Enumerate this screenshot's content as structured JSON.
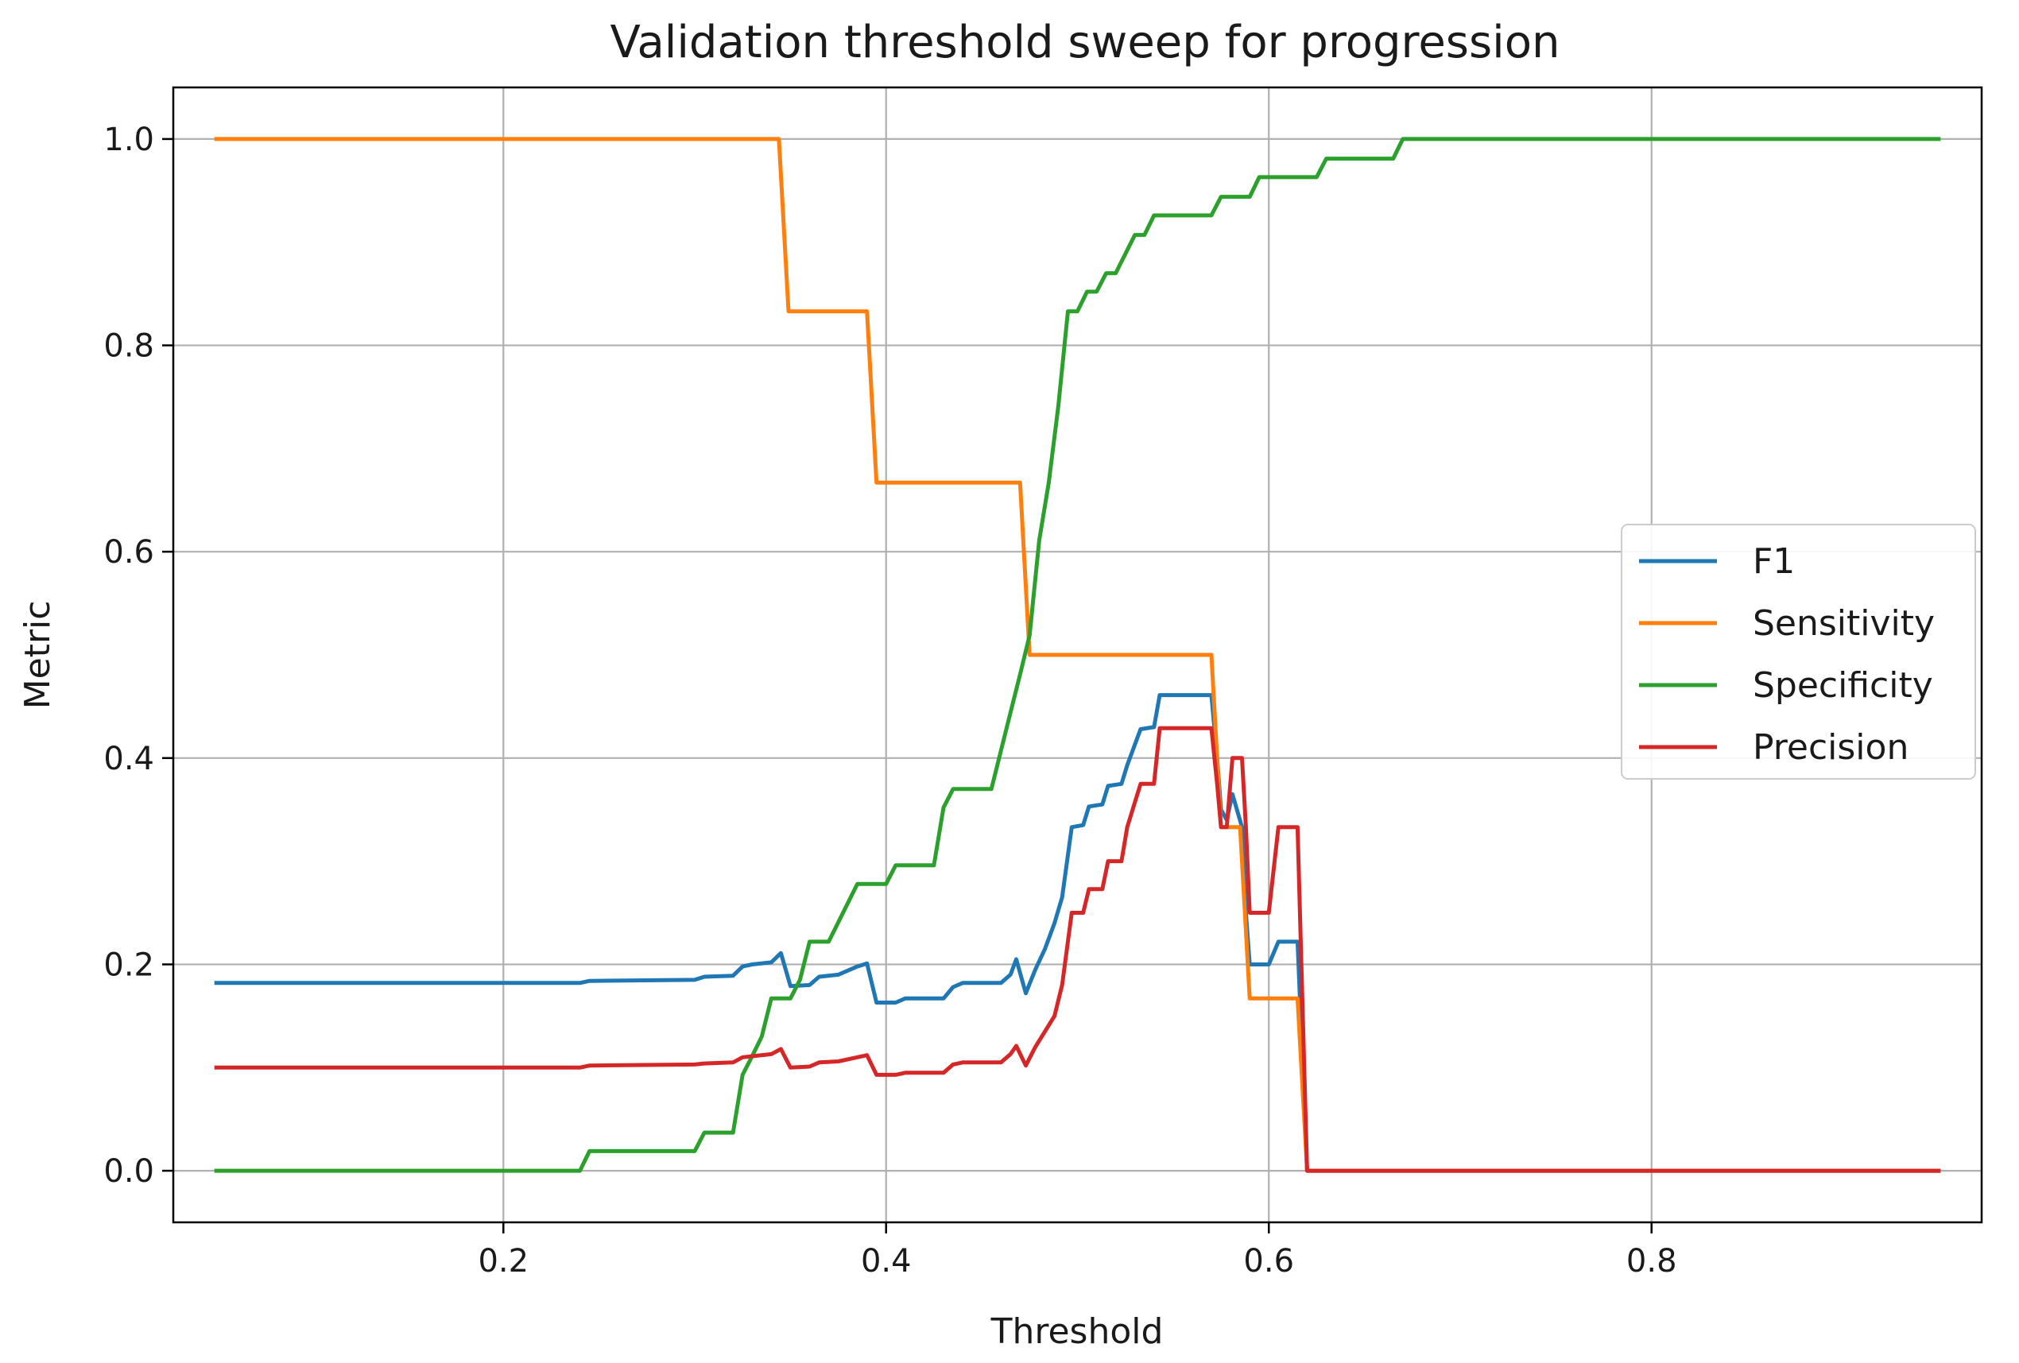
{
  "chart_data": {
    "type": "line",
    "title": "Validation threshold sweep for progression",
    "xlabel": "Threshold",
    "ylabel": "Metric",
    "xlim": [
      0.0275,
      0.9725
    ],
    "ylim": [
      -0.05,
      1.05
    ],
    "xticks": [
      0.2,
      0.4,
      0.6,
      0.8
    ],
    "xtick_labels": [
      "0.2",
      "0.4",
      "0.6",
      "0.8"
    ],
    "yticks": [
      0.0,
      0.2,
      0.4,
      0.6,
      0.8,
      1.0
    ],
    "ytick_labels": [
      "0.0",
      "0.2",
      "0.4",
      "0.6",
      "0.8",
      "1.0"
    ],
    "grid": true,
    "legend_position": "center-right",
    "series": [
      {
        "name": "F1",
        "color": "#1f77b4",
        "points": [
          [
            0.05,
            0.182
          ],
          [
            0.24,
            0.182
          ],
          [
            0.245,
            0.184
          ],
          [
            0.3,
            0.185
          ],
          [
            0.305,
            0.188
          ],
          [
            0.32,
            0.189
          ],
          [
            0.325,
            0.198
          ],
          [
            0.33,
            0.2
          ],
          [
            0.34,
            0.202
          ],
          [
            0.345,
            0.211
          ],
          [
            0.35,
            0.179
          ],
          [
            0.36,
            0.18
          ],
          [
            0.365,
            0.188
          ],
          [
            0.375,
            0.19
          ],
          [
            0.385,
            0.198
          ],
          [
            0.39,
            0.201
          ],
          [
            0.395,
            0.163
          ],
          [
            0.405,
            0.163
          ],
          [
            0.41,
            0.167
          ],
          [
            0.43,
            0.167
          ],
          [
            0.435,
            0.178
          ],
          [
            0.44,
            0.182
          ],
          [
            0.46,
            0.182
          ],
          [
            0.465,
            0.19
          ],
          [
            0.468,
            0.205
          ],
          [
            0.473,
            0.172
          ],
          [
            0.478,
            0.195
          ],
          [
            0.483,
            0.215
          ],
          [
            0.488,
            0.24
          ],
          [
            0.492,
            0.265
          ],
          [
            0.497,
            0.333
          ],
          [
            0.503,
            0.335
          ],
          [
            0.506,
            0.353
          ],
          [
            0.513,
            0.355
          ],
          [
            0.516,
            0.373
          ],
          [
            0.523,
            0.375
          ],
          [
            0.526,
            0.393
          ],
          [
            0.533,
            0.428
          ],
          [
            0.54,
            0.43
          ],
          [
            0.543,
            0.461
          ],
          [
            0.57,
            0.461
          ],
          [
            0.573,
            0.4
          ],
          [
            0.575,
            0.35
          ],
          [
            0.578,
            0.34
          ],
          [
            0.581,
            0.365
          ],
          [
            0.586,
            0.333
          ],
          [
            0.588,
            0.25
          ],
          [
            0.59,
            0.2
          ],
          [
            0.6,
            0.2
          ],
          [
            0.605,
            0.222
          ],
          [
            0.615,
            0.222
          ],
          [
            0.62,
            0.0
          ],
          [
            0.95,
            0.0
          ]
        ]
      },
      {
        "name": "Sensitivity",
        "color": "#ff7f0e",
        "points": [
          [
            0.05,
            1.0
          ],
          [
            0.344,
            1.0
          ],
          [
            0.349,
            0.833
          ],
          [
            0.39,
            0.833
          ],
          [
            0.395,
            0.667
          ],
          [
            0.47,
            0.667
          ],
          [
            0.475,
            0.5
          ],
          [
            0.57,
            0.5
          ],
          [
            0.575,
            0.333
          ],
          [
            0.585,
            0.333
          ],
          [
            0.59,
            0.167
          ],
          [
            0.615,
            0.167
          ],
          [
            0.62,
            0.0
          ],
          [
            0.95,
            0.0
          ]
        ]
      },
      {
        "name": "Specificity",
        "color": "#2ca02c",
        "points": [
          [
            0.05,
            0.0
          ],
          [
            0.24,
            0.0
          ],
          [
            0.245,
            0.019
          ],
          [
            0.3,
            0.019
          ],
          [
            0.305,
            0.037
          ],
          [
            0.32,
            0.037
          ],
          [
            0.325,
            0.093
          ],
          [
            0.33,
            0.111
          ],
          [
            0.335,
            0.13
          ],
          [
            0.34,
            0.167
          ],
          [
            0.35,
            0.167
          ],
          [
            0.355,
            0.185
          ],
          [
            0.36,
            0.222
          ],
          [
            0.37,
            0.222
          ],
          [
            0.385,
            0.278
          ],
          [
            0.4,
            0.278
          ],
          [
            0.405,
            0.296
          ],
          [
            0.425,
            0.296
          ],
          [
            0.43,
            0.352
          ],
          [
            0.435,
            0.37
          ],
          [
            0.455,
            0.37
          ],
          [
            0.46,
            0.407
          ],
          [
            0.465,
            0.444
          ],
          [
            0.47,
            0.481
          ],
          [
            0.475,
            0.519
          ],
          [
            0.48,
            0.611
          ],
          [
            0.485,
            0.667
          ],
          [
            0.49,
            0.741
          ],
          [
            0.495,
            0.833
          ],
          [
            0.5,
            0.833
          ],
          [
            0.505,
            0.852
          ],
          [
            0.51,
            0.852
          ],
          [
            0.515,
            0.87
          ],
          [
            0.52,
            0.87
          ],
          [
            0.53,
            0.907
          ],
          [
            0.535,
            0.907
          ],
          [
            0.54,
            0.926
          ],
          [
            0.565,
            0.926
          ],
          [
            0.57,
            0.926
          ],
          [
            0.575,
            0.944
          ],
          [
            0.59,
            0.944
          ],
          [
            0.595,
            0.963
          ],
          [
            0.625,
            0.963
          ],
          [
            0.63,
            0.981
          ],
          [
            0.665,
            0.981
          ],
          [
            0.67,
            1.0
          ],
          [
            0.95,
            1.0
          ]
        ]
      },
      {
        "name": "Precision",
        "color": "#d62728",
        "points": [
          [
            0.05,
            0.1
          ],
          [
            0.24,
            0.1
          ],
          [
            0.245,
            0.102
          ],
          [
            0.3,
            0.103
          ],
          [
            0.305,
            0.104
          ],
          [
            0.32,
            0.105
          ],
          [
            0.325,
            0.11
          ],
          [
            0.33,
            0.111
          ],
          [
            0.34,
            0.113
          ],
          [
            0.345,
            0.118
          ],
          [
            0.35,
            0.1
          ],
          [
            0.36,
            0.101
          ],
          [
            0.365,
            0.105
          ],
          [
            0.375,
            0.106
          ],
          [
            0.385,
            0.11
          ],
          [
            0.39,
            0.112
          ],
          [
            0.395,
            0.093
          ],
          [
            0.405,
            0.093
          ],
          [
            0.41,
            0.095
          ],
          [
            0.43,
            0.095
          ],
          [
            0.435,
            0.103
          ],
          [
            0.44,
            0.105
          ],
          [
            0.46,
            0.105
          ],
          [
            0.465,
            0.113
          ],
          [
            0.468,
            0.121
          ],
          [
            0.473,
            0.102
          ],
          [
            0.478,
            0.12
          ],
          [
            0.483,
            0.135
          ],
          [
            0.488,
            0.15
          ],
          [
            0.492,
            0.18
          ],
          [
            0.497,
            0.25
          ],
          [
            0.503,
            0.25
          ],
          [
            0.506,
            0.273
          ],
          [
            0.513,
            0.273
          ],
          [
            0.516,
            0.3
          ],
          [
            0.523,
            0.3
          ],
          [
            0.526,
            0.333
          ],
          [
            0.533,
            0.375
          ],
          [
            0.54,
            0.375
          ],
          [
            0.543,
            0.429
          ],
          [
            0.57,
            0.429
          ],
          [
            0.573,
            0.375
          ],
          [
            0.575,
            0.333
          ],
          [
            0.578,
            0.333
          ],
          [
            0.581,
            0.4
          ],
          [
            0.586,
            0.4
          ],
          [
            0.588,
            0.333
          ],
          [
            0.59,
            0.25
          ],
          [
            0.6,
            0.25
          ],
          [
            0.605,
            0.333
          ],
          [
            0.615,
            0.333
          ],
          [
            0.62,
            0.0
          ],
          [
            0.95,
            0.0
          ]
        ]
      }
    ]
  }
}
